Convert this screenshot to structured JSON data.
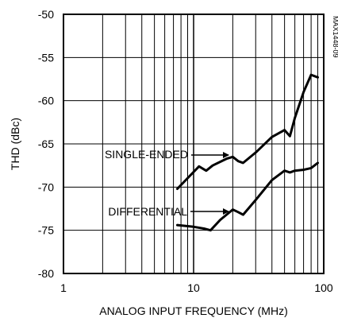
{
  "chart_data": {
    "type": "line",
    "title": "",
    "xlabel": "ANALOG INPUT FREQUENCY (MHz)",
    "ylabel": "THD (dBc)",
    "x_scale": "log",
    "xlim": [
      1,
      100
    ],
    "ylim": [
      -80,
      -50
    ],
    "x_ticks": [
      1,
      10,
      100
    ],
    "x_tick_labels": [
      "1",
      "10",
      "100"
    ],
    "y_ticks": [
      -50,
      -55,
      -60,
      -65,
      -70,
      -75,
      -80
    ],
    "y_tick_labels": [
      "-50",
      "-55",
      "-60",
      "-65",
      "-70",
      "-75",
      "-80"
    ],
    "grid": true,
    "legend": "none",
    "series": [
      {
        "name": "SINGLE-ENDED",
        "x": [
          7.5,
          11,
          12.5,
          14,
          18,
          20,
          22,
          24,
          30,
          40,
          50,
          55,
          60,
          70,
          80,
          90
        ],
        "y": [
          -70.2,
          -67.6,
          -68.1,
          -67.5,
          -66.7,
          -66.5,
          -67.0,
          -67.2,
          -66.0,
          -64.2,
          -63.4,
          -64.1,
          -62.0,
          -59.0,
          -57.0,
          -57.3
        ]
      },
      {
        "name": "DIFFERENTIAL",
        "x": [
          7.5,
          10,
          12,
          13.5,
          16,
          20,
          22,
          24,
          30,
          40,
          50,
          55,
          60,
          70,
          80,
          90
        ],
        "y": [
          -74.4,
          -74.6,
          -74.8,
          -75.0,
          -73.8,
          -72.6,
          -72.9,
          -73.2,
          -71.5,
          -69.2,
          -68.1,
          -68.3,
          -68.1,
          -68.0,
          -67.8,
          -67.2
        ]
      }
    ],
    "annotations": [
      {
        "text": "SINGLE-ENDED",
        "target_series": "SINGLE-ENDED"
      },
      {
        "text": "DIFFERENTIAL",
        "target_series": "DIFFERENTIAL"
      }
    ],
    "side_code": "MAX1448-09"
  }
}
